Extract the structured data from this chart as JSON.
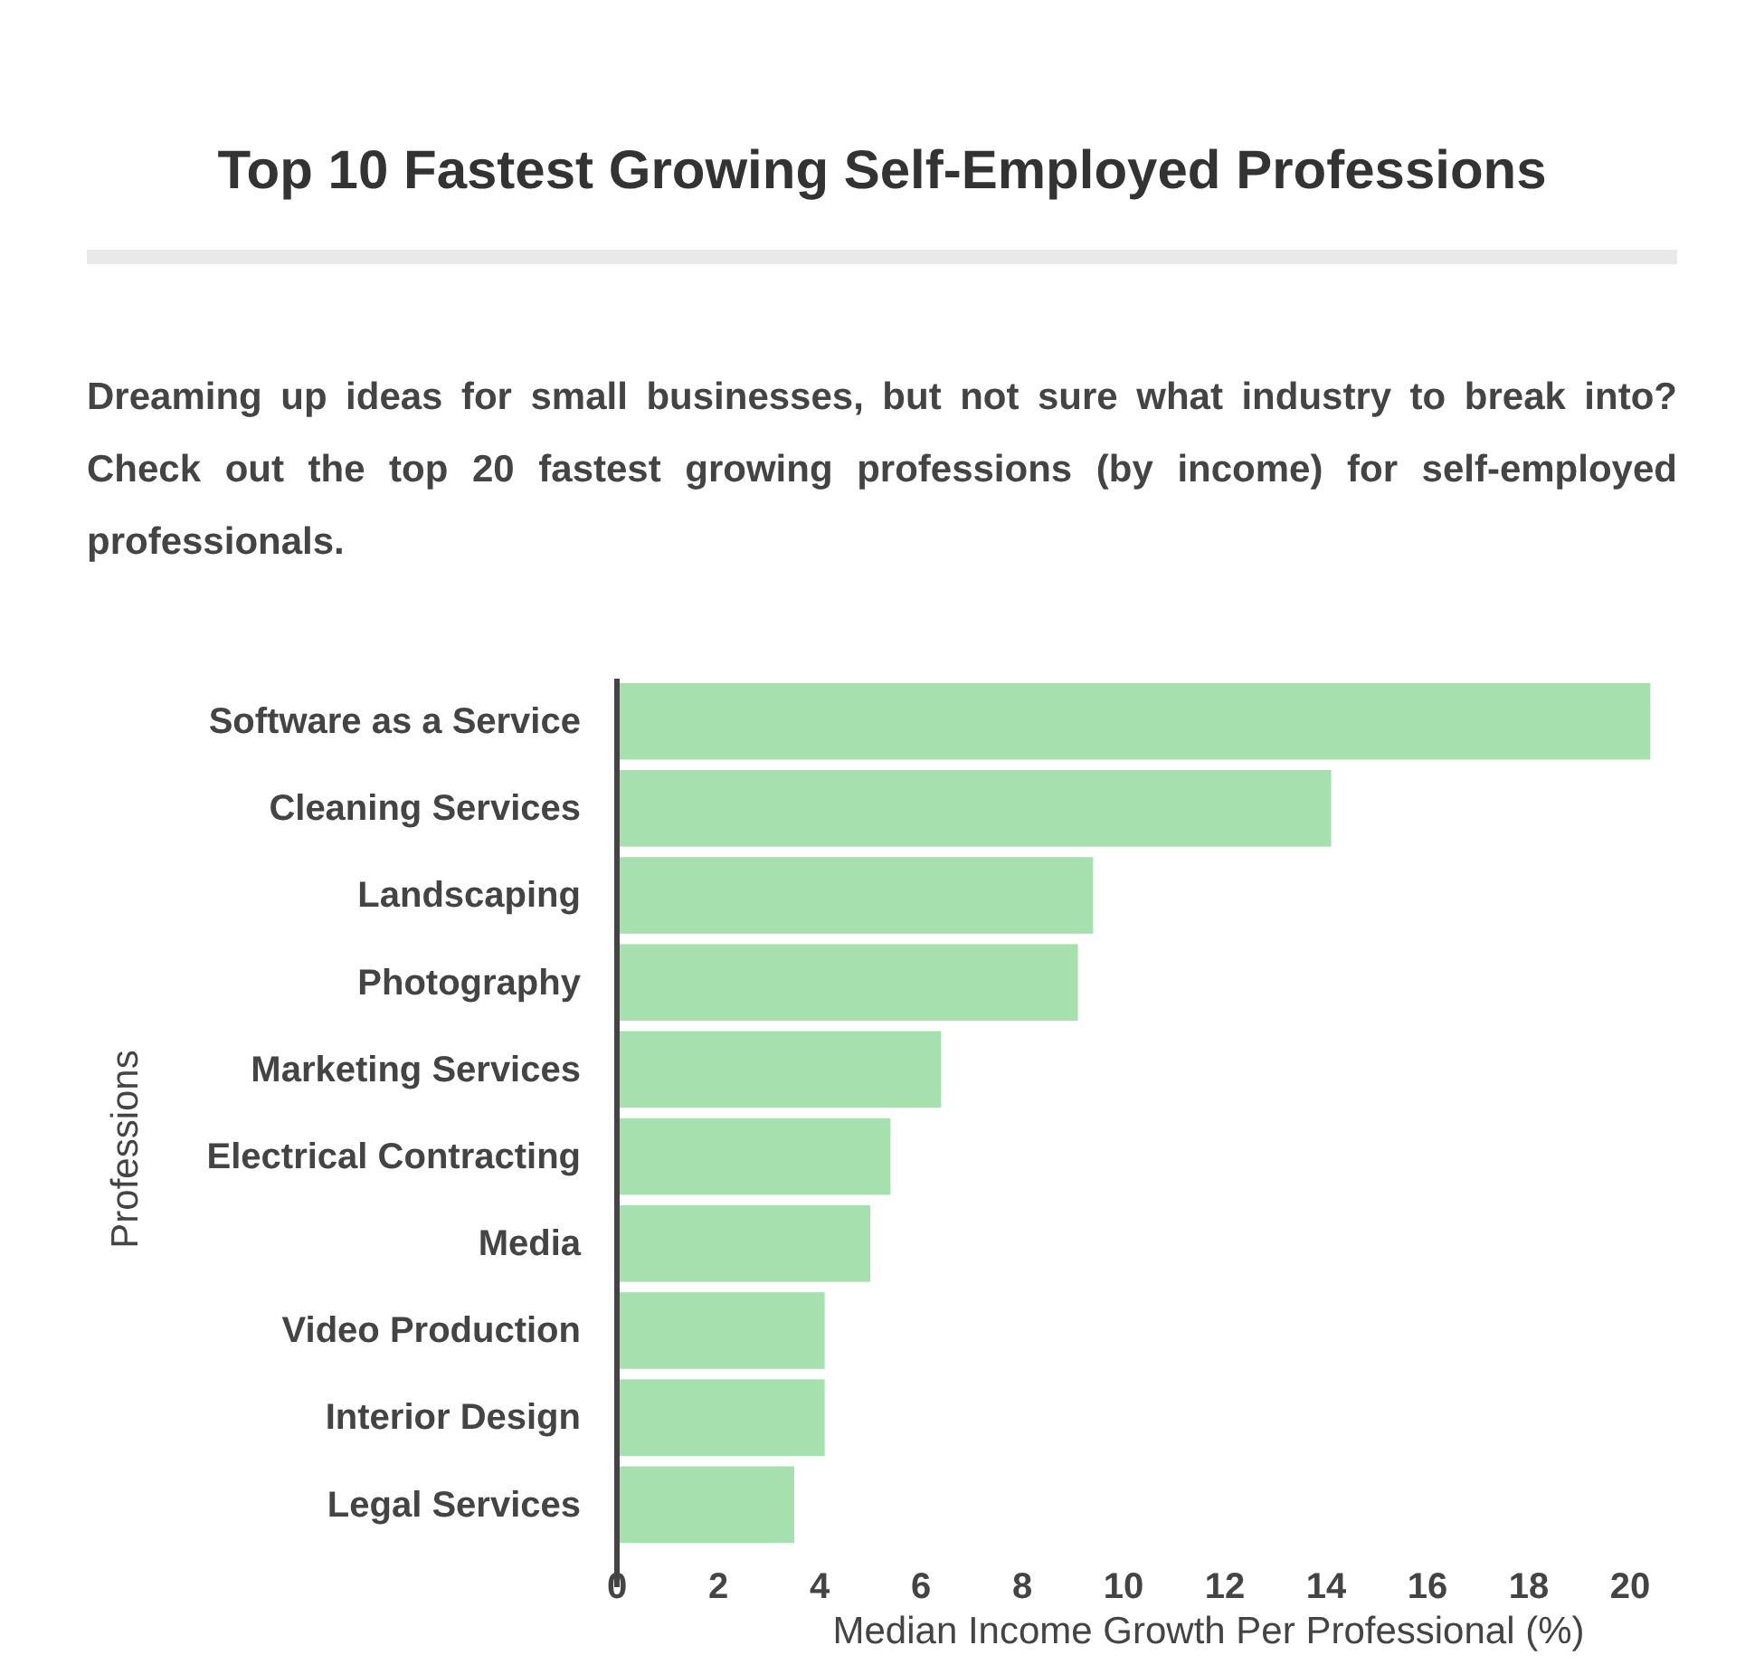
{
  "chart_data": {
    "type": "bar",
    "orientation": "horizontal",
    "title": "Top 10 Fastest Growing Self-Employed Professions",
    "subtitle": "Dreaming up ideas for small businesses, but not sure what industry to break into? Check out the top 20 fastest growing professions (by income) for self-employed professionals.",
    "xlabel": "Median Income Growth Per Professional (%)",
    "ylabel": "Professions",
    "categories": [
      "Software as a Service",
      "Cleaning Services",
      "Landscaping",
      "Photography",
      "Marketing Services",
      "Electrical Contracting",
      "Media",
      "Video Production",
      "Interior Design",
      "Legal Services"
    ],
    "values": [
      20.4,
      14.1,
      9.4,
      9.1,
      6.4,
      5.4,
      5.0,
      4.1,
      4.1,
      3.5
    ],
    "color": "#a6e0ae",
    "xlim": [
      0,
      20.5
    ],
    "xticks": [
      0,
      2,
      4,
      6,
      8,
      10,
      12,
      14,
      16,
      18,
      20
    ]
  }
}
